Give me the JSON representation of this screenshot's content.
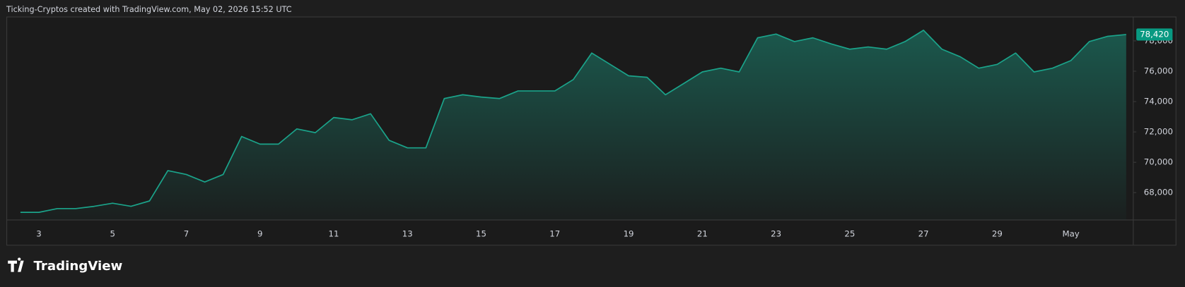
{
  "header": "Ticking-Cryptos created with TradingView.com, May 02, 2026 15:52 UTC",
  "brand": "TradingView",
  "chart_data": {
    "type": "area",
    "color": "#1ba38a",
    "categories": [
      null,
      "3",
      null,
      null,
      null,
      "5",
      null,
      null,
      null,
      "7",
      null,
      null,
      null,
      "9",
      null,
      null,
      null,
      "11",
      null,
      null,
      null,
      "13",
      null,
      null,
      null,
      "15",
      null,
      null,
      null,
      "17",
      null,
      null,
      null,
      "19",
      null,
      null,
      null,
      "21",
      null,
      null,
      null,
      "23",
      null,
      null,
      null,
      "25",
      null,
      null,
      null,
      "27",
      null,
      null,
      null,
      "29",
      null,
      null,
      null,
      "May",
      null,
      null,
      null
    ],
    "values": [
      66700,
      66700,
      66950,
      66950,
      67100,
      67300,
      67100,
      67450,
      69450,
      69200,
      68700,
      69200,
      71700,
      71200,
      71200,
      72200,
      71950,
      72950,
      72800,
      73200,
      71450,
      70950,
      70950,
      74200,
      74450,
      74300,
      74200,
      74700,
      74700,
      74700,
      75450,
      77200,
      76450,
      75700,
      75600,
      74450,
      75200,
      75950,
      76200,
      75950,
      78200,
      78450,
      77950,
      78200,
      77800,
      77450,
      77600,
      77450,
      77950,
      78700,
      77450,
      76950,
      76200,
      76450,
      77200,
      75950,
      76200,
      76700,
      77950,
      78300,
      78420
    ],
    "value_labels": [
      null,
      null,
      null,
      null,
      null,
      null,
      null,
      null,
      null,
      null,
      null,
      null,
      null,
      null,
      null,
      null,
      null,
      null,
      null,
      null,
      null,
      null,
      null,
      null,
      null,
      null,
      null,
      null,
      null,
      null,
      null,
      null,
      null,
      null,
      null,
      null,
      null,
      null,
      null,
      null,
      null,
      null,
      null,
      null,
      null,
      null,
      null,
      null,
      null,
      null,
      null,
      null,
      null,
      null,
      null,
      null,
      null,
      null,
      null,
      null,
      "78,420"
    ],
    "ylim": [
      66200,
      79600
    ],
    "yticks": [
      {
        "value": 68000,
        "label": "68,000"
      },
      {
        "value": 70000,
        "label": "70,000"
      },
      {
        "value": 72000,
        "label": "72,000"
      },
      {
        "value": 74000,
        "label": "74,000"
      },
      {
        "value": 76000,
        "label": "76,000"
      },
      {
        "value": 78000,
        "label": "78,000"
      }
    ],
    "grid": false
  }
}
